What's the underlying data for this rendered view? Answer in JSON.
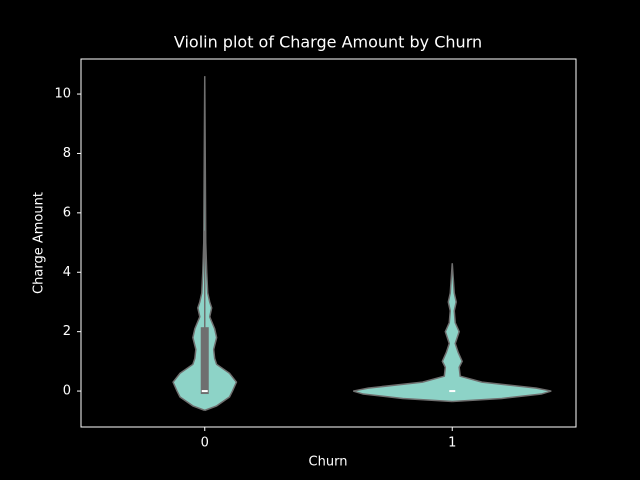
{
  "chart_data": {
    "type": "violin",
    "title": "Violin plot of Charge Amount by Churn",
    "x_label": "Churn",
    "y_label": "Charge Amount",
    "categories": [
      "0",
      "1"
    ],
    "ylim": [
      -1.21,
      11.18
    ],
    "yticks": [
      0,
      2,
      4,
      6,
      8,
      10
    ],
    "color": "#8dd3c7",
    "edge_color": "#6f6f6f",
    "box_color": "#6f6f6f",
    "median_color": "#ffffff",
    "violins": [
      {
        "density_y": [
          -0.65,
          -0.5,
          -0.2,
          0,
          0.3,
          0.6,
          0.9,
          1.1,
          1.4,
          1.8,
          2.1,
          2.5,
          2.8,
          3.0,
          3.3,
          4,
          5,
          10.6
        ],
        "density_width": [
          0,
          0.12,
          0.25,
          0.28,
          0.32,
          0.25,
          0.12,
          0.1,
          0.09,
          0.12,
          0.1,
          0.05,
          0.07,
          0.05,
          0.03,
          0.02,
          0.01,
          0
        ],
        "box": {
          "whisker_low": -0.1,
          "q1": -0.1,
          "median": 0,
          "q3": 2.15,
          "whisker_high": 5.4
        }
      },
      {
        "density_y": [
          -0.35,
          -0.25,
          -0.1,
          0,
          0.1,
          0.3,
          0.5,
          0.8,
          1.0,
          1.3,
          1.6,
          2.0,
          2.3,
          2.7,
          3.0,
          3.3,
          4.3
        ],
        "density_width": [
          0,
          0.5,
          0.9,
          1.0,
          0.85,
          0.3,
          0.08,
          0.07,
          0.1,
          0.06,
          0.03,
          0.07,
          0.03,
          0.02,
          0.04,
          0.02,
          0
        ],
        "box": {
          "whisker_low": 0,
          "q1": 0,
          "median": 0,
          "q3": 0,
          "whisker_high": 0
        }
      }
    ]
  }
}
